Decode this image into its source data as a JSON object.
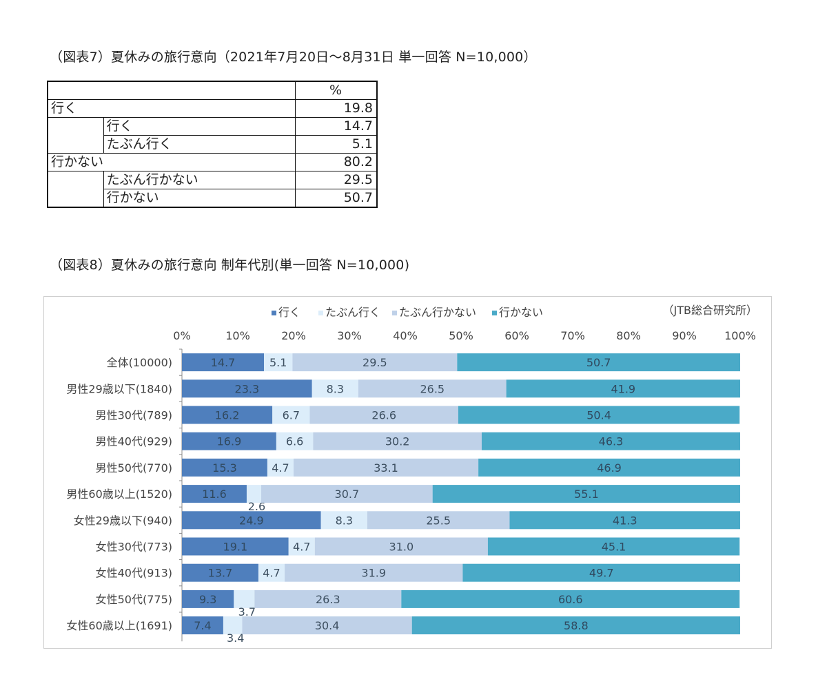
{
  "table7": {
    "title": "（図表7）夏休みの旅行意向（2021年7月20日～8月31日 単一回答 N=10,000）",
    "unit_header": "%",
    "rows": [
      {
        "label": "行く",
        "value": "19.8"
      },
      {
        "label": "行く",
        "value": "14.7"
      },
      {
        "label": "たぶん行く",
        "value": "5.1"
      },
      {
        "label": "行かない",
        "value": "80.2"
      },
      {
        "label": "たぶん行かない",
        "value": "29.5"
      },
      {
        "label": "行かない",
        "value": "50.7"
      }
    ]
  },
  "chart8_title": "（図表8）夏休みの旅行意向 制年代別(単一回答 N=10,000)",
  "chart_data": {
    "type": "bar",
    "orientation": "horizontal",
    "stacked": "100%",
    "source_note": "（JTB総合研究所）",
    "legend_position": "top",
    "xlim": [
      0,
      100
    ],
    "xticks": [
      "0%",
      "10%",
      "20%",
      "30%",
      "40%",
      "50%",
      "60%",
      "70%",
      "80%",
      "90%",
      "100%"
    ],
    "categories": [
      "全体(10000)",
      "男性29歳以下(1840)",
      "男性30代(789)",
      "男性40代(929)",
      "男性50代(770)",
      "男性60歳以上(1520)",
      "女性29歳以下(940)",
      "女性30代(773)",
      "女性40代(913)",
      "女性50代(775)",
      "女性60歳以上(1691)"
    ],
    "series": [
      {
        "name": "行く",
        "color": "#4f7fbd",
        "values": [
          14.7,
          23.3,
          16.2,
          16.9,
          15.3,
          11.6,
          24.9,
          19.1,
          13.7,
          9.3,
          7.4
        ]
      },
      {
        "name": "たぶん行く",
        "color": "#dcedfa",
        "values": [
          5.1,
          8.3,
          6.7,
          6.6,
          4.7,
          2.6,
          8.3,
          4.7,
          4.7,
          3.7,
          3.4
        ]
      },
      {
        "name": "たぶん行かない",
        "color": "#bfd1e8",
        "values": [
          29.5,
          26.5,
          26.6,
          30.2,
          33.1,
          30.7,
          25.5,
          31.0,
          31.9,
          26.3,
          30.4
        ]
      },
      {
        "name": "行かない",
        "color": "#4aaac8",
        "values": [
          50.7,
          41.9,
          50.4,
          46.3,
          46.9,
          55.1,
          41.3,
          45.1,
          49.7,
          60.6,
          58.8
        ]
      }
    ]
  }
}
